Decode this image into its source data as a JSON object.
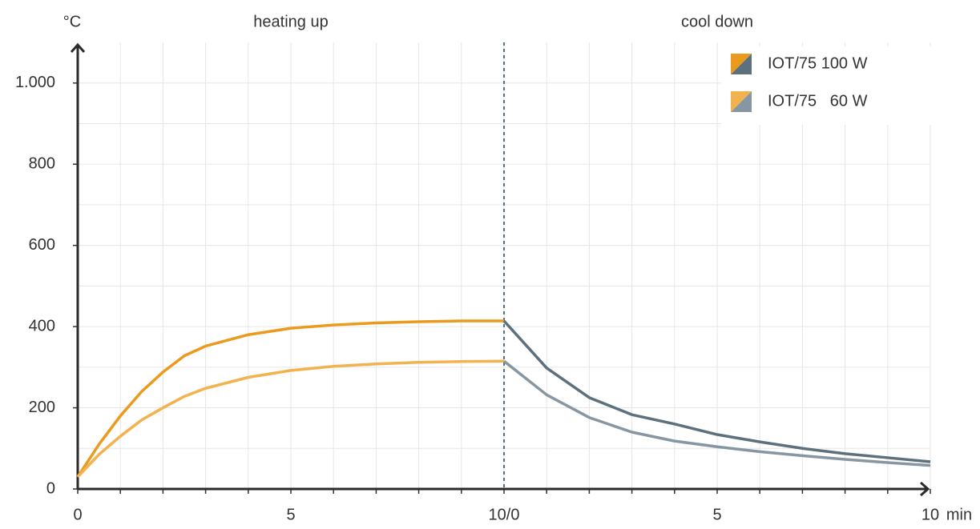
{
  "chart_data": {
    "type": "line",
    "annotations": {
      "phase_1": "heating up",
      "phase_2": "cool down"
    },
    "ylabel": "°C",
    "xlabel": "min",
    "xlim": [
      0,
      20
    ],
    "ylim": [
      0,
      1100
    ],
    "xticks": [
      0,
      5,
      {
        "value": 10,
        "label": "10/0"
      },
      {
        "value": 15,
        "label": "5"
      },
      {
        "value": 20,
        "label": "10"
      }
    ],
    "yticks": [
      0,
      200,
      400,
      600,
      800,
      {
        "value": 1000,
        "label": "1.000"
      }
    ],
    "minor_xticks": [
      0,
      1,
      2,
      3,
      4,
      5,
      6,
      7,
      8,
      9,
      10,
      11,
      12,
      13,
      14,
      15,
      16,
      17,
      18,
      19,
      20
    ],
    "minor_yticks": [
      0,
      100,
      200,
      300,
      400,
      500,
      600,
      700,
      800,
      900,
      1000
    ],
    "grid": true,
    "phase_split": 10,
    "legend": "top-right",
    "x": [
      0,
      0.5,
      1,
      1.5,
      2,
      2.5,
      3,
      4,
      5,
      6,
      7,
      8,
      9,
      10,
      11,
      12,
      13,
      14,
      15,
      16,
      17,
      18,
      19,
      20
    ],
    "series": [
      {
        "name": "IOT/75 100 W",
        "colors": [
          "#ec9a1e",
          "#5d707d"
        ],
        "values": [
          30,
          110,
          180,
          240,
          288,
          328,
          352,
          380,
          396,
          404,
          409,
          412,
          414,
          414,
          298,
          225,
          183,
          160,
          134,
          116,
          100,
          87,
          77,
          67
        ]
      },
      {
        "name": "IOT/75   60 W",
        "colors": [
          "#f2b24e",
          "#8697a3"
        ],
        "values": [
          30,
          85,
          130,
          170,
          200,
          228,
          248,
          275,
          292,
          302,
          308,
          312,
          314,
          315,
          232,
          176,
          140,
          118,
          104,
          92,
          82,
          73,
          65,
          58
        ]
      }
    ]
  }
}
